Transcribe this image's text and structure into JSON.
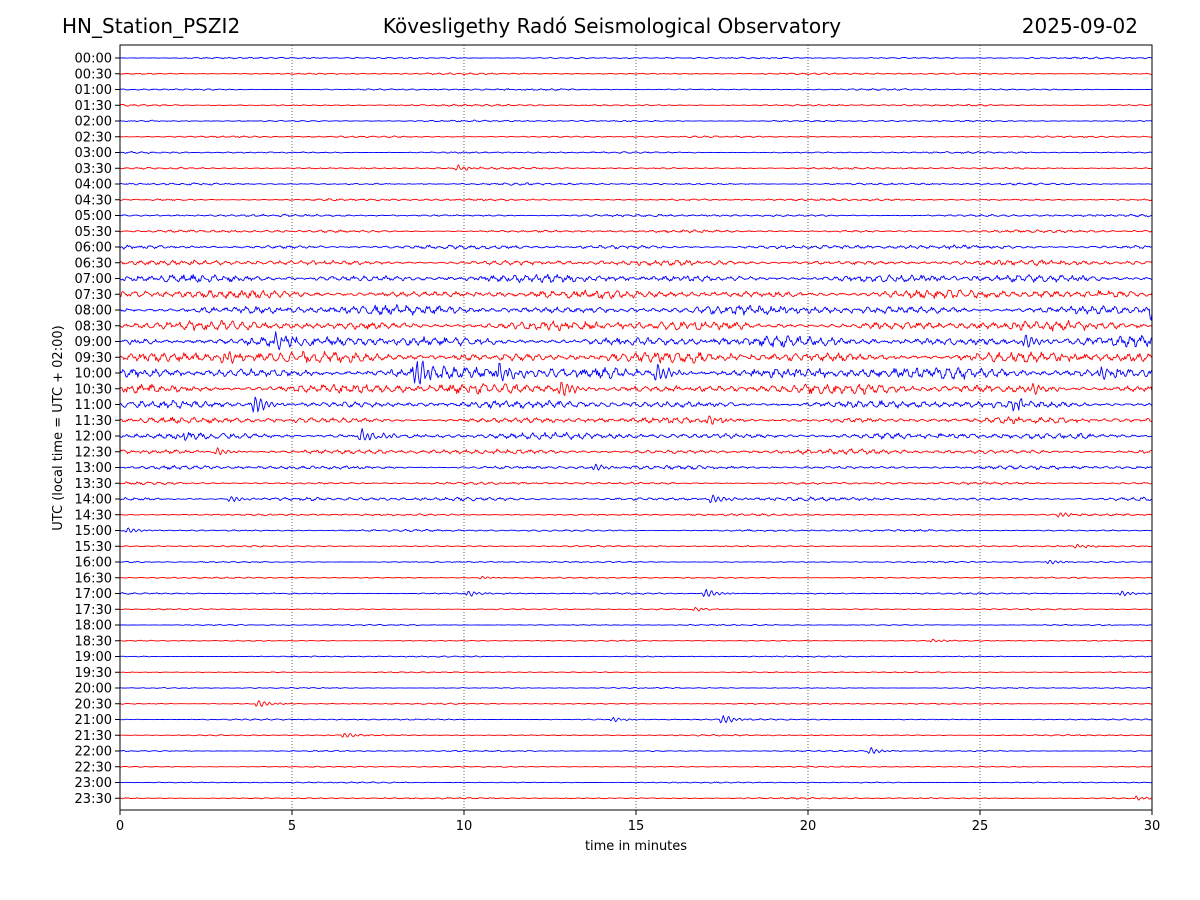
{
  "header": {
    "station": "HN_Station_PSZI2",
    "observatory": "Kövesligethy Radó Seismological Observatory",
    "date": "2025-09-02"
  },
  "chart_data": {
    "type": "line",
    "subtype": "helicorder",
    "xlabel": "time in minutes",
    "ylabel": "UTC (local time = UTC + 02:00)",
    "xlim": [
      0,
      30
    ],
    "x_ticks": [
      "0",
      "5",
      "10",
      "15",
      "20",
      "25",
      "30"
    ],
    "grid": "vertical dotted lines at every 5 minutes",
    "colors": [
      "#0000ff",
      "#ff0000"
    ],
    "rows": [
      {
        "label": "00:00",
        "activity": 0.1
      },
      {
        "label": "00:30",
        "activity": 0.1
      },
      {
        "label": "01:00",
        "activity": 0.1
      },
      {
        "label": "01:30",
        "activity": 0.11
      },
      {
        "label": "02:00",
        "activity": 0.1
      },
      {
        "label": "02:30",
        "activity": 0.1
      },
      {
        "label": "03:00",
        "activity": 0.1
      },
      {
        "label": "03:30",
        "activity": 0.12
      },
      {
        "label": "04:00",
        "activity": 0.13
      },
      {
        "label": "04:30",
        "activity": 0.13
      },
      {
        "label": "05:00",
        "activity": 0.14
      },
      {
        "label": "05:30",
        "activity": 0.16
      },
      {
        "label": "06:00",
        "activity": 0.25
      },
      {
        "label": "06:30",
        "activity": 0.32
      },
      {
        "label": "07:00",
        "activity": 0.45
      },
      {
        "label": "07:30",
        "activity": 0.5
      },
      {
        "label": "08:00",
        "activity": 0.55
      },
      {
        "label": "08:30",
        "activity": 0.55
      },
      {
        "label": "09:00",
        "activity": 0.6
      },
      {
        "label": "09:30",
        "activity": 0.65
      },
      {
        "label": "10:00",
        "activity": 0.7
      },
      {
        "label": "10:30",
        "activity": 0.6
      },
      {
        "label": "11:00",
        "activity": 0.45
      },
      {
        "label": "11:30",
        "activity": 0.35
      },
      {
        "label": "12:00",
        "activity": 0.38
      },
      {
        "label": "12:30",
        "activity": 0.3
      },
      {
        "label": "13:00",
        "activity": 0.22
      },
      {
        "label": "13:30",
        "activity": 0.15
      },
      {
        "label": "14:00",
        "activity": 0.22
      },
      {
        "label": "14:30",
        "activity": 0.12
      },
      {
        "label": "15:00",
        "activity": 0.12
      },
      {
        "label": "15:30",
        "activity": 0.1
      },
      {
        "label": "16:00",
        "activity": 0.08
      },
      {
        "label": "16:30",
        "activity": 0.08
      },
      {
        "label": "17:00",
        "activity": 0.09
      },
      {
        "label": "17:30",
        "activity": 0.08
      },
      {
        "label": "18:00",
        "activity": 0.07
      },
      {
        "label": "18:30",
        "activity": 0.07
      },
      {
        "label": "19:00",
        "activity": 0.07
      },
      {
        "label": "19:30",
        "activity": 0.07
      },
      {
        "label": "20:00",
        "activity": 0.07
      },
      {
        "label": "20:30",
        "activity": 0.08
      },
      {
        "label": "21:00",
        "activity": 0.08
      },
      {
        "label": "21:30",
        "activity": 0.08
      },
      {
        "label": "22:00",
        "activity": 0.08
      },
      {
        "label": "22:30",
        "activity": 0.07
      },
      {
        "label": "23:00",
        "activity": 0.07
      },
      {
        "label": "23:30",
        "activity": 0.09
      }
    ],
    "events": [
      {
        "row": "03:30",
        "minute": 9.8,
        "amplitude": 0.4
      },
      {
        "row": "08:00",
        "minute": 30.0,
        "amplitude": 1.6
      },
      {
        "row": "09:00",
        "minute": 4.5,
        "amplitude": 1.0
      },
      {
        "row": "09:00",
        "minute": 26.3,
        "amplitude": 0.9
      },
      {
        "row": "09:30",
        "minute": 3.0,
        "amplitude": 0.9
      },
      {
        "row": "10:00",
        "minute": 8.6,
        "amplitude": 2.0
      },
      {
        "row": "10:00",
        "minute": 11.0,
        "amplitude": 1.2
      },
      {
        "row": "10:00",
        "minute": 15.6,
        "amplitude": 1.3
      },
      {
        "row": "10:00",
        "minute": 28.5,
        "amplitude": 1.0
      },
      {
        "row": "10:30",
        "minute": 12.8,
        "amplitude": 1.1
      },
      {
        "row": "10:30",
        "minute": 26.5,
        "amplitude": 0.7
      },
      {
        "row": "11:00",
        "minute": 3.9,
        "amplitude": 1.2
      },
      {
        "row": "11:00",
        "minute": 26.0,
        "amplitude": 0.9
      },
      {
        "row": "11:30",
        "minute": 17.1,
        "amplitude": 0.7
      },
      {
        "row": "12:00",
        "minute": 7.0,
        "amplitude": 0.9
      },
      {
        "row": "12:00",
        "minute": 1.8,
        "amplitude": 0.5
      },
      {
        "row": "12:30",
        "minute": 2.8,
        "amplitude": 0.5
      },
      {
        "row": "13:00",
        "minute": 13.8,
        "amplitude": 0.5
      },
      {
        "row": "14:00",
        "minute": 17.2,
        "amplitude": 0.6
      },
      {
        "row": "14:00",
        "minute": 3.2,
        "amplitude": 0.4
      },
      {
        "row": "14:30",
        "minute": 27.3,
        "amplitude": 0.35
      },
      {
        "row": "15:00",
        "minute": 0.2,
        "amplitude": 0.4
      },
      {
        "row": "15:30",
        "minute": 27.8,
        "amplitude": 0.25
      },
      {
        "row": "16:00",
        "minute": 27.0,
        "amplitude": 0.3
      },
      {
        "row": "16:30",
        "minute": 10.5,
        "amplitude": 0.2
      },
      {
        "row": "17:00",
        "minute": 10.1,
        "amplitude": 0.4
      },
      {
        "row": "17:00",
        "minute": 17.0,
        "amplitude": 0.6
      },
      {
        "row": "17:00",
        "minute": 29.1,
        "amplitude": 0.35
      },
      {
        "row": "17:30",
        "minute": 16.7,
        "amplitude": 0.25
      },
      {
        "row": "18:30",
        "minute": 23.6,
        "amplitude": 0.2
      },
      {
        "row": "20:30",
        "minute": 4.0,
        "amplitude": 0.5
      },
      {
        "row": "21:00",
        "minute": 17.5,
        "amplitude": 0.6
      },
      {
        "row": "21:00",
        "minute": 14.3,
        "amplitude": 0.3
      },
      {
        "row": "21:30",
        "minute": 6.5,
        "amplitude": 0.35
      },
      {
        "row": "22:00",
        "minute": 21.8,
        "amplitude": 0.4
      },
      {
        "row": "23:30",
        "minute": 29.5,
        "amplitude": 0.25
      }
    ]
  }
}
